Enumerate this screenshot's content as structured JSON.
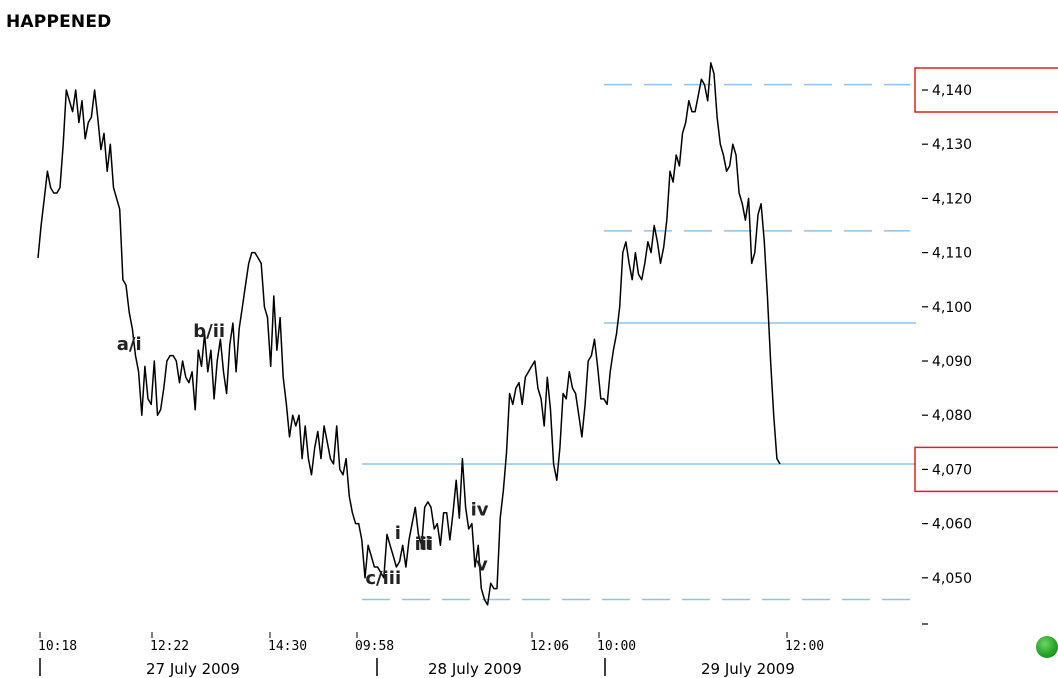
{
  "title": "HAPPENED",
  "colors": {
    "price_line": "#000000",
    "level_line": "#8fc3e8",
    "highlight_box": "#e02020",
    "status_dot": "#2ea52a"
  },
  "status_icon": "green-dot-icon",
  "chart_data": {
    "type": "line",
    "title": "HAPPENED",
    "xlabel": "",
    "ylabel": "",
    "ylim": [
      4045,
      4145
    ],
    "ytick_labels": [
      "4,140",
      "4,130",
      "4,120",
      "4,110",
      "4,100",
      "4,090",
      "4,080",
      "4,070",
      "4,060",
      "4,050"
    ],
    "ytick_values": [
      4140,
      4130,
      4120,
      4110,
      4100,
      4090,
      4080,
      4070,
      4060,
      4050
    ],
    "highlighted_ticks": [
      "4,140",
      "4,070"
    ],
    "x_tick_labels": [
      "10:18",
      "12:22",
      "14:30",
      "09:58",
      "12:06",
      "10:00",
      "12:00"
    ],
    "date_labels": [
      "27 July 2009",
      "28 July 2009",
      "29 July 2009"
    ],
    "wave_labels": [
      "a/i",
      "b/ii",
      "c/iii",
      "i",
      "ii",
      "iii",
      "iv",
      "v"
    ],
    "wave_label_points": [
      29,
      57,
      113,
      117,
      120,
      131,
      136,
      145
    ],
    "levels": [
      {
        "value": 4141,
        "style": "dashed"
      },
      {
        "value": 4114,
        "style": "dashed"
      },
      {
        "value": 4097,
        "style": "solid"
      },
      {
        "value": 4071,
        "style": "solid"
      },
      {
        "value": 4046,
        "style": "dashed"
      }
    ],
    "series": [
      {
        "values": [
          4109,
          4115,
          4120,
          4125,
          4122,
          4121,
          4121,
          4122,
          4130,
          4140,
          4138,
          4136,
          4140,
          4134,
          4138,
          4131,
          4134,
          4135,
          4140,
          4135,
          4129,
          4132,
          4125,
          4130,
          4122,
          4120,
          4118,
          4105,
          4104,
          4099,
          4096,
          4091,
          4088,
          4080,
          4089,
          4083,
          4082,
          4090,
          4080,
          4081,
          4085,
          4090,
          4091,
          4091,
          4090,
          4086,
          4090,
          4087,
          4086,
          4088,
          4081,
          4092,
          4089,
          4095,
          4088,
          4092,
          4083,
          4090,
          4094,
          4088,
          4084,
          4093,
          4097,
          4088,
          4096,
          4100,
          4104,
          4108,
          4110,
          4110,
          4109,
          4108,
          4100,
          4098,
          4089,
          4102,
          4092,
          4098,
          4087,
          4082,
          4076,
          4080,
          4078,
          4080,
          4072,
          4078,
          4072,
          4069,
          4074,
          4077,
          4072,
          4078,
          4075,
          4072,
          4071,
          4078,
          4070,
          4069,
          4072,
          4065,
          4062,
          4060,
          4060,
          4057,
          4050,
          4056,
          4054,
          4052,
          4052,
          4051,
          4050,
          4058,
          4056,
          4054,
          4052,
          4053,
          4056,
          4052,
          4057,
          4060,
          4063,
          4058,
          4056,
          4063,
          4064,
          4063,
          4059,
          4060,
          4056,
          4062,
          4062,
          4057,
          4062,
          4068,
          4061,
          4072,
          4063,
          4059,
          4060,
          4052,
          4056,
          4048,
          4046,
          4045,
          4049,
          4048,
          4048,
          4061,
          4066,
          4073,
          4084,
          4082,
          4085,
          4086,
          4082,
          4087,
          4088,
          4089,
          4090,
          4085,
          4083,
          4078,
          4087,
          4081,
          4071,
          4068,
          4074,
          4084,
          4083,
          4088,
          4085,
          4084,
          4080,
          4076,
          4082,
          4090,
          4091,
          4094,
          4089,
          4083,
          4083,
          4082,
          4088,
          4092,
          4095,
          4100,
          4110,
          4112,
          4108,
          4105,
          4110,
          4106,
          4105,
          4108,
          4112,
          4110,
          4115,
          4112,
          4108,
          4111,
          4116,
          4125,
          4123,
          4128,
          4126,
          4132,
          4134,
          4138,
          4136,
          4136,
          4139,
          4142,
          4141,
          4138,
          4145,
          4143,
          4135,
          4130,
          4128,
          4125,
          4126,
          4130,
          4128,
          4121,
          4119,
          4116,
          4120,
          4108,
          4110,
          4117,
          4119,
          4112,
          4102,
          4090,
          4080,
          4072,
          4071
        ]
      }
    ]
  },
  "texts": {
    "wave_a_i": "a/i",
    "wave_b_ii": "b/ii",
    "wave_c_iii": "c/iii",
    "wave_i": "i",
    "wave_ii": "ii",
    "wave_iii": "iii",
    "wave_iv": "iv",
    "wave_v": "v"
  }
}
